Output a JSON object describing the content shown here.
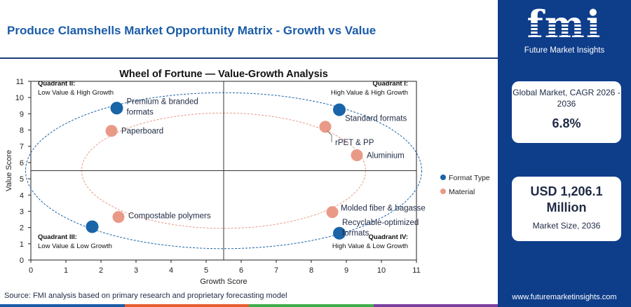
{
  "header": {
    "title": "Produce Clamshells Market Opportunity Matrix - Growth vs Value"
  },
  "chart_data": {
    "type": "scatter",
    "title": "Wheel of Fortune — Value-Growth Analysis",
    "xlabel": "Growth Score",
    "ylabel": "Value Score",
    "xlim": [
      0,
      11
    ],
    "ylim": [
      0,
      11
    ],
    "x_ticks": [
      0,
      1,
      2,
      3,
      4,
      5,
      6,
      7,
      8,
      9,
      10,
      11
    ],
    "y_ticks": [
      0,
      1,
      2,
      3,
      4,
      5,
      6,
      7,
      8,
      9,
      10,
      11
    ],
    "divider_x": 5.5,
    "divider_y": 5.5,
    "grid": false,
    "legend_position": "right",
    "quadrants": [
      {
        "name": "Quadrant I:",
        "desc": "High Value & High Growth",
        "position": "top-right"
      },
      {
        "name": "Quadrant II:",
        "desc": "Low Value & High Growth",
        "position": "top-left"
      },
      {
        "name": "Quadrant III:",
        "desc": "Low Value & Low Growth",
        "position": "bottom-left"
      },
      {
        "name": "Quadrant IV:",
        "desc": "High Value & Low Growth",
        "position": "bottom-right"
      }
    ],
    "series": [
      {
        "name": "Format Type",
        "color": "#1a64a8",
        "points": [
          {
            "label": "Premium & branded formats",
            "x": 2.45,
            "y": 9.35
          },
          {
            "label": "Standard formats",
            "x": 8.8,
            "y": 9.25
          },
          {
            "label": "Compostable polymers",
            "x": 1.75,
            "y": 2.05
          },
          {
            "label": "Recyclable-optimized formats",
            "x": 8.8,
            "y": 1.65
          }
        ]
      },
      {
        "name": "Material",
        "color": "#e99a86",
        "points": [
          {
            "label": "Paperboard",
            "x": 2.3,
            "y": 7.95
          },
          {
            "label": "rPET & PP",
            "x": 8.4,
            "y": 8.2
          },
          {
            "label": "Aluminium",
            "x": 9.3,
            "y": 6.45
          },
          {
            "label": "Molded fiber & bagasse",
            "x": 8.6,
            "y": 2.95
          },
          {
            "label": "Compostable polymers",
            "x": 2.5,
            "y": 2.65
          }
        ]
      }
    ]
  },
  "footer": {
    "source": "Source: FMI analysis based on primary research and proprietary forecasting model",
    "bar_colors": [
      "#1a5ca8",
      "#e85d2f",
      "#3fae49",
      "#7b3fa0"
    ]
  },
  "sidebar": {
    "logo_text": "fmi",
    "logo_sub": "Future Market Insights",
    "cagr_label": "Global Market, CAGR 2026 - 2036",
    "cagr_value": "6.8%",
    "size_value": "USD 1,206.1 Million",
    "size_label": "Market Size, 2036",
    "website": "www.futuremarketinsights.com"
  }
}
